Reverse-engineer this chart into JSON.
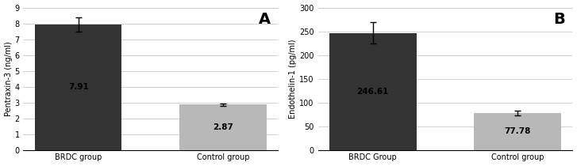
{
  "chart_A": {
    "categories": [
      "BRDC group",
      "Control group"
    ],
    "values": [
      7.91,
      2.87
    ],
    "errors": [
      0.45,
      0.08
    ],
    "bar_colors": [
      "#333333",
      "#b8b8b8"
    ],
    "ylabel": "Pentraxin-3 (ng/ml)",
    "ylim": [
      0,
      9
    ],
    "yticks": [
      0,
      1,
      2,
      3,
      4,
      5,
      6,
      7,
      8,
      9
    ],
    "label": "A",
    "value_labels": [
      "7.91",
      "2.87"
    ]
  },
  "chart_B": {
    "categories": [
      "BRDC Group",
      "Control group"
    ],
    "values": [
      246.61,
      77.78
    ],
    "errors": [
      22,
      5
    ],
    "bar_colors": [
      "#333333",
      "#b8b8b8"
    ],
    "ylabel": "Endothelin-1 (pg/ml)",
    "ylim": [
      0,
      300
    ],
    "yticks": [
      0,
      50,
      100,
      150,
      200,
      250,
      300
    ],
    "label": "B",
    "value_labels": [
      "246.61",
      "77.78"
    ]
  }
}
